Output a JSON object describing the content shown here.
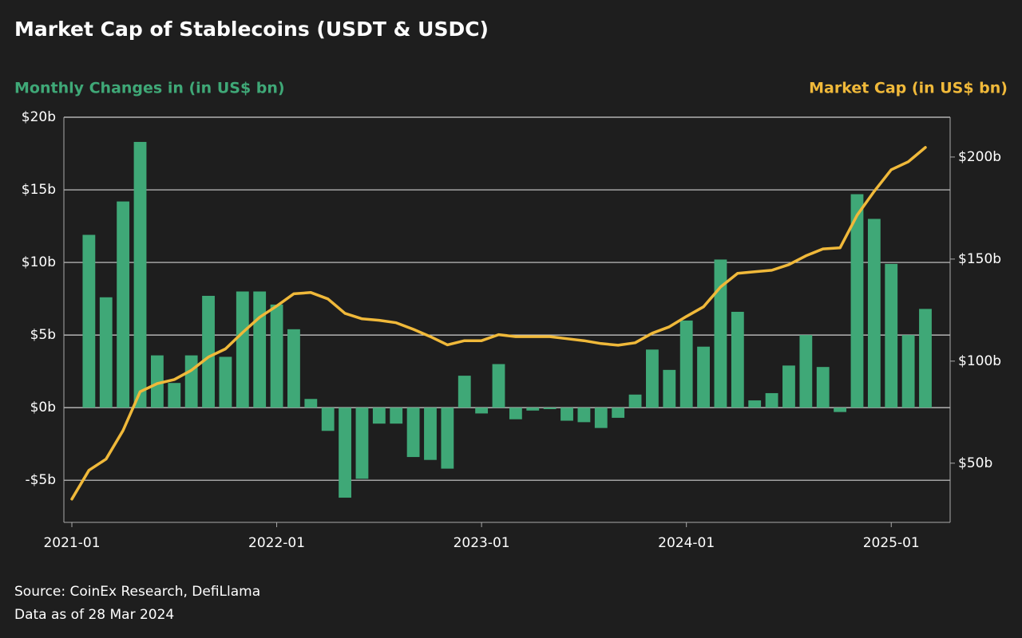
{
  "chart_data": {
    "type": "bar+line",
    "title": "Market Cap of Stablecoins (USDT & USDC)",
    "y_label": "Monthly Changes in (in US$ bn)",
    "y2_label": "Market Cap (in US$ bn)",
    "source": "Source: CoinEx Research, DefiLlama",
    "note": "Data as of 28 Mar 2024",
    "x": [
      "2021-01",
      "2021-02",
      "2021-03",
      "2021-04",
      "2021-05",
      "2021-06",
      "2021-07",
      "2021-08",
      "2021-09",
      "2021-10",
      "2021-11",
      "2021-12",
      "2022-01",
      "2022-02",
      "2022-03",
      "2022-04",
      "2022-05",
      "2022-06",
      "2022-07",
      "2022-08",
      "2022-09",
      "2022-10",
      "2022-11",
      "2022-12",
      "2023-01",
      "2023-02",
      "2023-03",
      "2023-04",
      "2023-05",
      "2023-06",
      "2023-07",
      "2023-08",
      "2023-09",
      "2023-10",
      "2023-11",
      "2023-12",
      "2024-01",
      "2024-02",
      "2024-03",
      "2024-04",
      "2024-05",
      "2024-06",
      "2024-07",
      "2024-08",
      "2024-09",
      "2024-10",
      "2024-11",
      "2024-12",
      "2025-01",
      "2025-02",
      "2025-03"
    ],
    "series": [
      {
        "type": "bar",
        "axis": "y",
        "color": "#3fa877",
        "values": [
          null,
          11.9,
          7.6,
          14.2,
          18.3,
          3.6,
          1.7,
          3.6,
          7.7,
          3.5,
          8.0,
          8.0,
          7.1,
          5.4,
          0.6,
          -1.6,
          -6.2,
          -4.9,
          -1.1,
          -1.1,
          -3.4,
          -3.6,
          -4.2,
          2.2,
          -0.4,
          3.0,
          -0.8,
          -0.2,
          -0.1,
          -0.9,
          -1.0,
          -1.4,
          -0.7,
          0.9,
          4.0,
          2.6,
          6.0,
          4.2,
          10.2,
          6.6,
          0.5,
          1.0,
          2.9,
          5.0,
          2.8,
          -0.3,
          14.7,
          13.0,
          9.9,
          5.0,
          6.8
        ]
      },
      {
        "type": "line",
        "axis": "y2",
        "color": "#f0b93a",
        "values": [
          32.4,
          46.5,
          52,
          66,
          85,
          89,
          91,
          95.5,
          102,
          106,
          114,
          121.5,
          127,
          133,
          133.6,
          130.5,
          123.4,
          120.7,
          120,
          118.8,
          115.6,
          112,
          108,
          110,
          110,
          113,
          112,
          112,
          112,
          111,
          110,
          108.6,
          107.8,
          109,
          113.7,
          116.8,
          121.9,
          126.6,
          136.3,
          143,
          143.8,
          144.5,
          147.3,
          151.6,
          155,
          155.5,
          171.5,
          183.2,
          193.8,
          197.7,
          204.7
        ]
      }
    ],
    "ylim": [
      -7.9,
      20
    ],
    "yticks": [
      {
        "value": -5,
        "label": "-$5b"
      },
      {
        "value": 0,
        "label": "$0b"
      },
      {
        "value": 5,
        "label": "$5b"
      },
      {
        "value": 10,
        "label": "$10b"
      },
      {
        "value": 15,
        "label": "$15b"
      },
      {
        "value": 20,
        "label": "$20b"
      }
    ],
    "y2lim": [
      21,
      219.5
    ],
    "y2ticks": [
      {
        "value": 50,
        "label": "$50b"
      },
      {
        "value": 100,
        "label": "$100b"
      },
      {
        "value": 150,
        "label": "$150b"
      },
      {
        "value": 200,
        "label": "$200b"
      }
    ],
    "xticks": [
      "2021-01",
      "2022-01",
      "2023-01",
      "2024-01",
      "2025-01"
    ],
    "grid": true
  }
}
